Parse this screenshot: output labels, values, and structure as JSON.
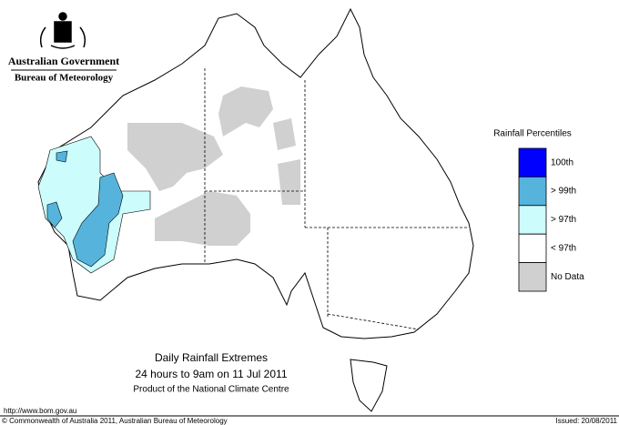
{
  "header": {
    "org": "Australian Government",
    "bureau": "Bureau of Meteorology"
  },
  "legend": {
    "title": "Rainfall Percentiles",
    "items": [
      {
        "label": "100th",
        "color": "#0000ff"
      },
      {
        "label": "> 99th",
        "color": "#56b4dc"
      },
      {
        "label": "> 97th",
        "color": "#ccfcfc"
      },
      {
        "label": "< 97th",
        "color": "#ffffff"
      },
      {
        "label": "No Data",
        "color": "#d0d0d0"
      }
    ]
  },
  "title": {
    "line1": "Daily Rainfall Extremes",
    "line2": "24 hours to 9am on 11 Jul 2011",
    "line3": "Product of the National Climate Centre"
  },
  "footer": {
    "url": "http://www.bom.gov.au",
    "copyright": "© Commonwealth of Australia 2011, Australian Bureau of Meteorology",
    "issued": "Issued: 20/08/2011"
  }
}
